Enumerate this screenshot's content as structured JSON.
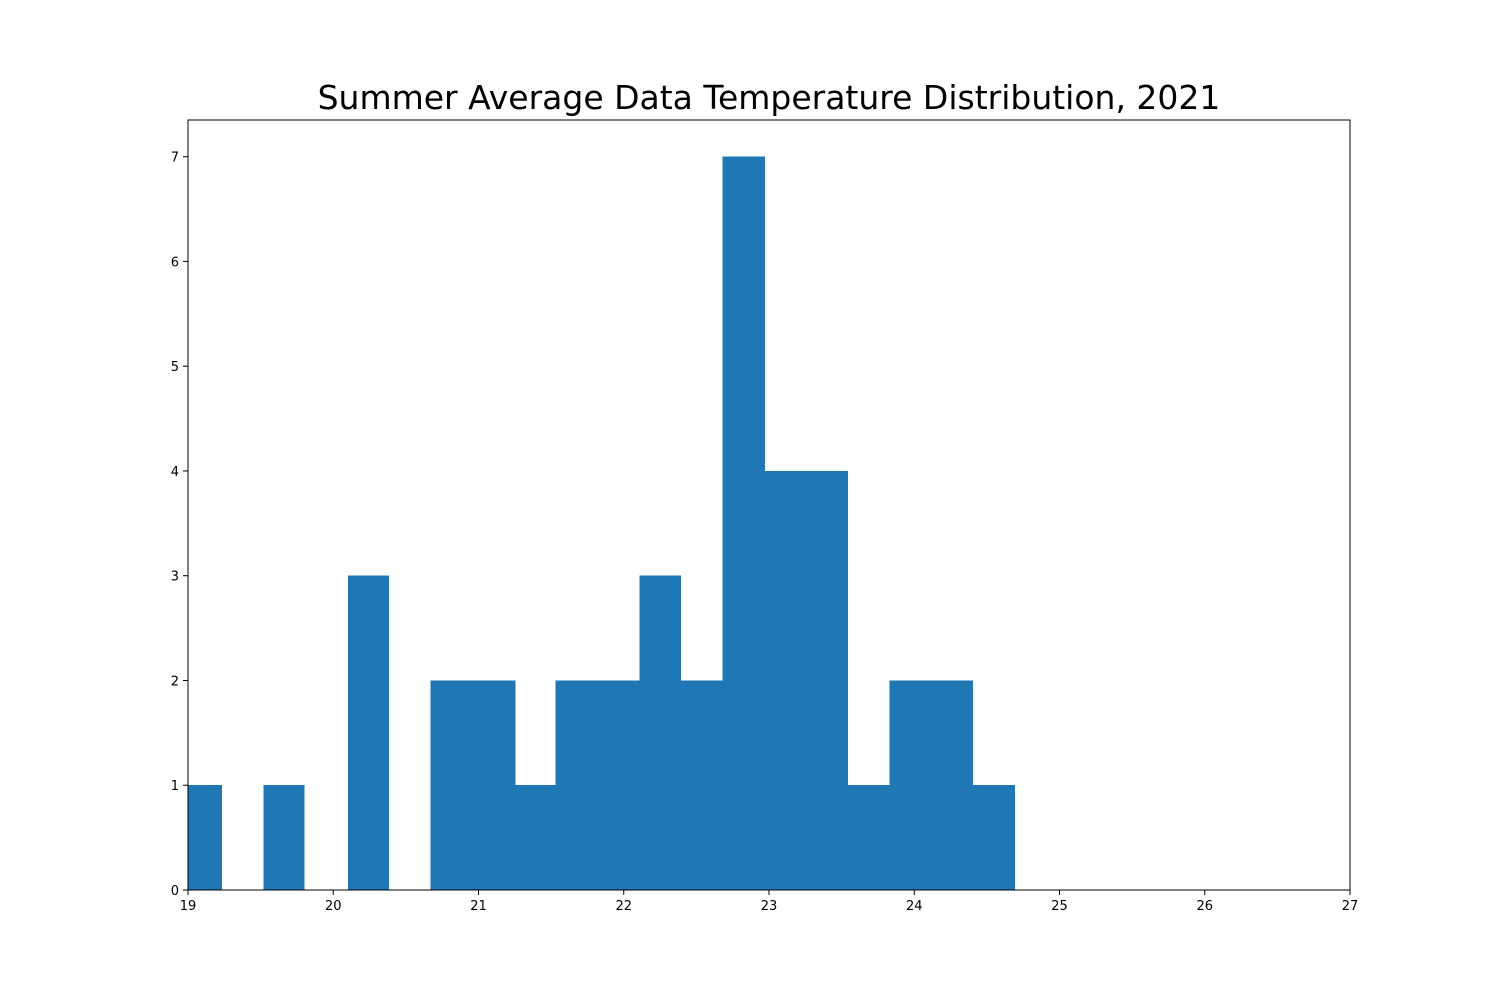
{
  "chart_data": {
    "type": "bar",
    "title": "Summer Average Data Temperature Distribution, 2021",
    "xlabel": "",
    "ylabel": "",
    "xlim": [
      19,
      27
    ],
    "ylim": [
      0,
      7.35
    ],
    "xticks": [
      "19",
      "20",
      "21",
      "22",
      "23",
      "24",
      "25",
      "26",
      "27"
    ],
    "yticks": [
      "0",
      "1",
      "2",
      "3",
      "4",
      "5",
      "6",
      "7"
    ],
    "bar_color": "#1f77b4",
    "grid": false,
    "bins": [
      {
        "x0": 19.0,
        "x1": 19.23,
        "count": 1
      },
      {
        "x0": 19.52,
        "x1": 19.8,
        "count": 1
      },
      {
        "x0": 20.1,
        "x1": 20.38,
        "count": 3
      },
      {
        "x0": 20.67,
        "x1": 20.96,
        "count": 2
      },
      {
        "x0": 20.96,
        "x1": 21.25,
        "count": 2
      },
      {
        "x0": 21.25,
        "x1": 21.53,
        "count": 1
      },
      {
        "x0": 21.53,
        "x1": 21.82,
        "count": 2
      },
      {
        "x0": 21.82,
        "x1": 22.11,
        "count": 2
      },
      {
        "x0": 22.11,
        "x1": 22.39,
        "count": 3
      },
      {
        "x0": 22.39,
        "x1": 22.68,
        "count": 2
      },
      {
        "x0": 22.68,
        "x1": 22.97,
        "count": 7
      },
      {
        "x0": 22.97,
        "x1": 23.25,
        "count": 4
      },
      {
        "x0": 23.25,
        "x1": 23.54,
        "count": 4
      },
      {
        "x0": 23.54,
        "x1": 23.83,
        "count": 1
      },
      {
        "x0": 23.83,
        "x1": 24.11,
        "count": 2
      },
      {
        "x0": 24.11,
        "x1": 24.4,
        "count": 2
      },
      {
        "x0": 24.4,
        "x1": 24.69,
        "count": 1
      }
    ]
  }
}
